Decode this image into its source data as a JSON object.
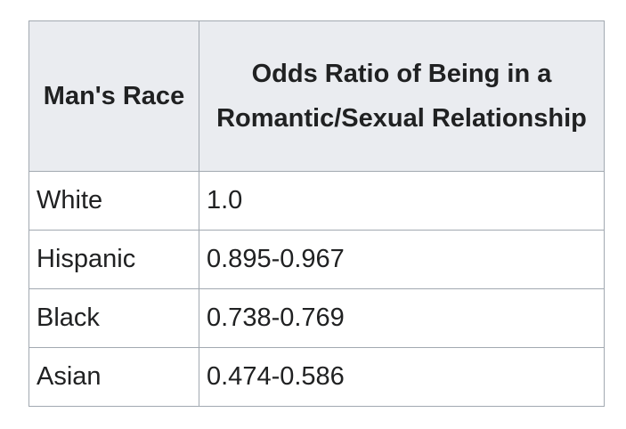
{
  "table": {
    "header": [
      "Man's Race",
      "Odds Ratio of Being in a Romantic/Sexual Relationship"
    ],
    "rows": [
      [
        "White",
        "1.0"
      ],
      [
        "Hispanic",
        "0.895-0.967"
      ],
      [
        "Black",
        "0.738-0.769"
      ],
      [
        "Asian",
        "0.474-0.586"
      ]
    ]
  }
}
